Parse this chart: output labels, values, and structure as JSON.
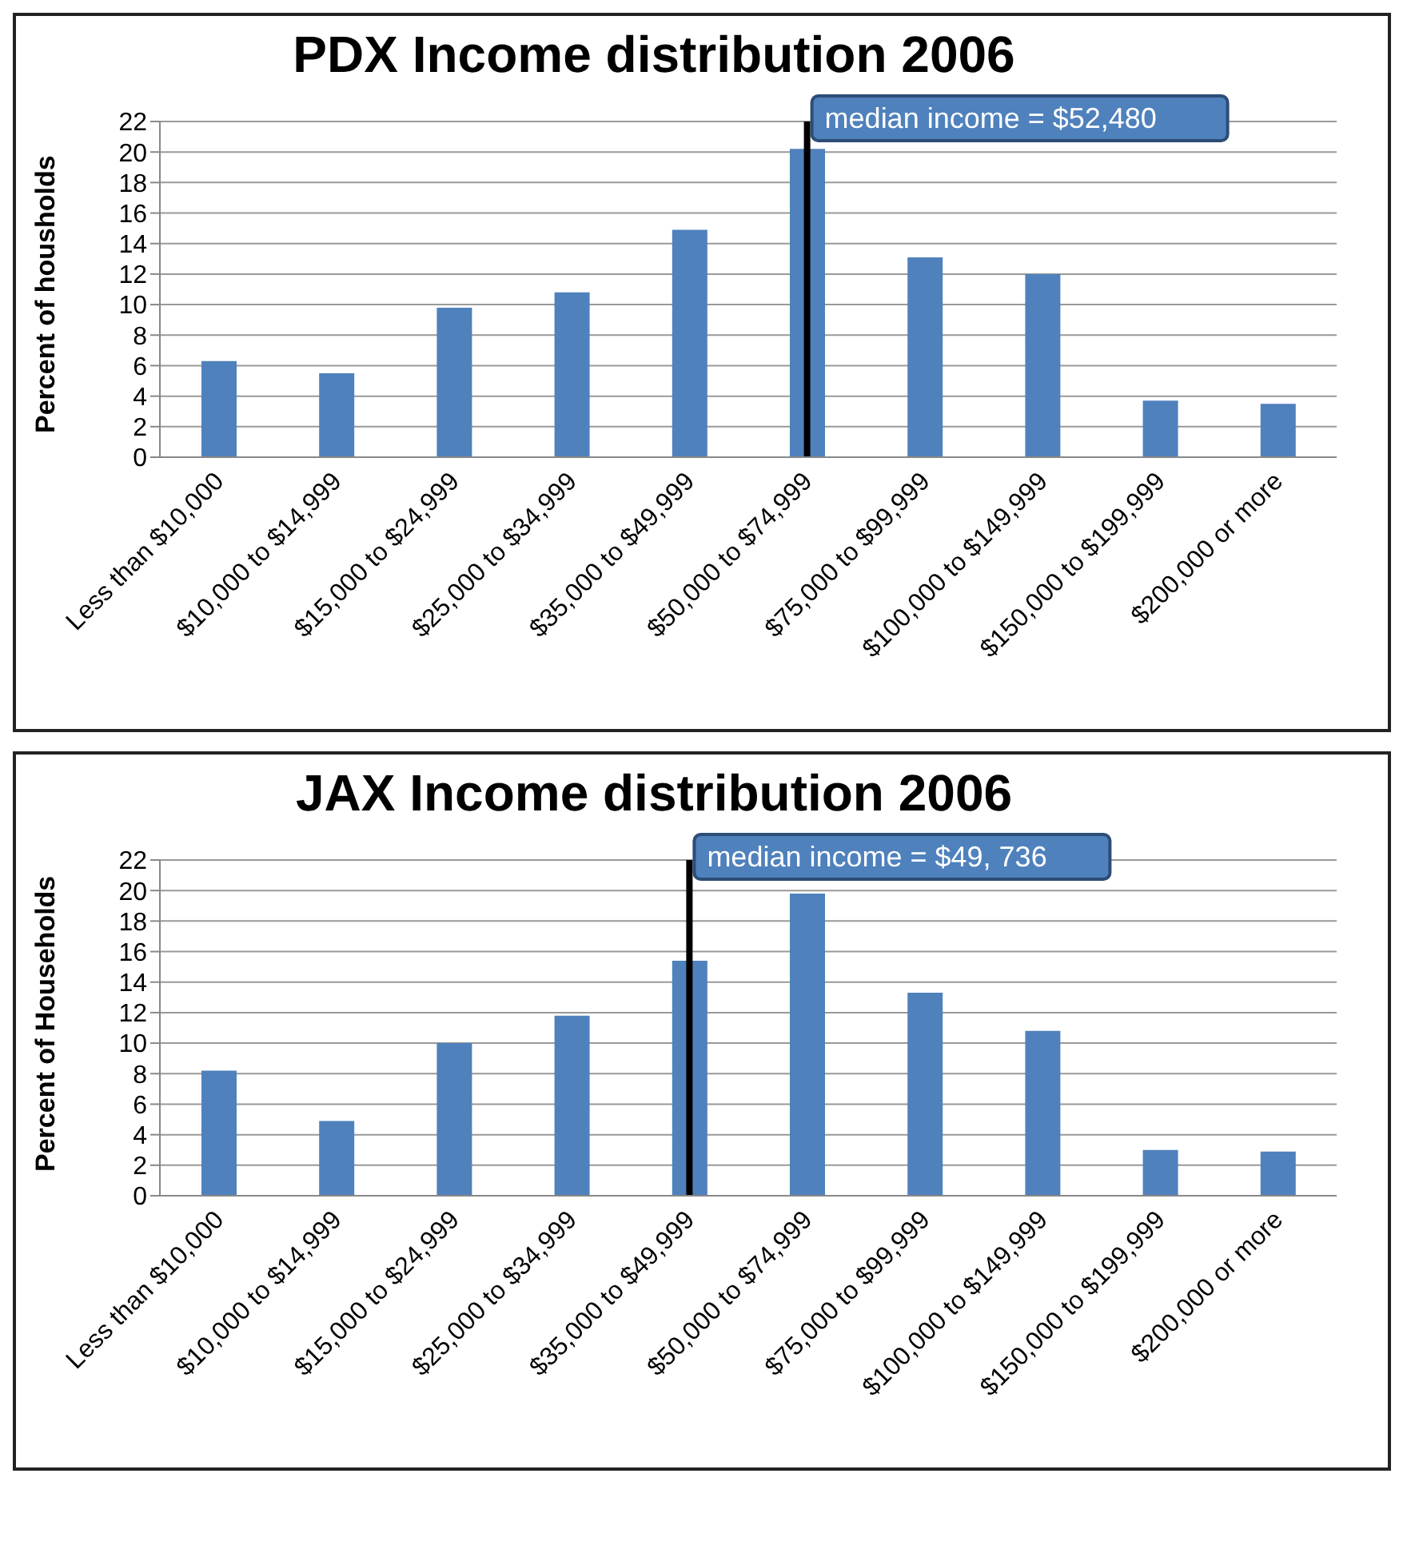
{
  "chart_data": [
    {
      "type": "bar",
      "title": "PDX Income distribution 2006",
      "ylabel": "Percent of housholds",
      "categories": [
        "Less than $10,000",
        "$10,000 to $14,999",
        "$15,000 to $24,999",
        "$25,000 to $34,999",
        "$35,000 to $49,999",
        "$50,000 to $74,999",
        "$75,000 to $99,999",
        "$100,000 to $149,999",
        "$150,000 to $199,999",
        "$200,000 or more"
      ],
      "values": [
        6.3,
        5.5,
        9.8,
        10.8,
        14.9,
        20.2,
        13.1,
        12.0,
        3.7,
        3.5
      ],
      "color": "#4f81bd",
      "ylim": [
        0,
        22
      ],
      "yticks": [
        0,
        2,
        4,
        6,
        8,
        10,
        12,
        14,
        16,
        18,
        20,
        22
      ],
      "grid": "y",
      "legend": false,
      "ref_lines": [
        {
          "axis": "x",
          "value": "$50,000 to $74,999",
          "label": "median income = $52,480",
          "color": "#000000"
        }
      ]
    },
    {
      "type": "bar",
      "title": "JAX Income distribution 2006",
      "ylabel": "Percent of Households",
      "categories": [
        "Less than $10,000",
        "$10,000 to $14,999",
        "$15,000 to $24,999",
        "$25,000 to $34,999",
        "$35,000 to $49,999",
        "$50,000 to $74,999",
        "$75,000 to $99,999",
        "$100,000 to $149,999",
        "$150,000 to $199,999",
        "$200,000 or more"
      ],
      "values": [
        8.2,
        4.9,
        10.0,
        11.8,
        15.4,
        19.8,
        13.3,
        10.8,
        3.0,
        2.9
      ],
      "color": "#4f81bd",
      "ylim": [
        0,
        22
      ],
      "yticks": [
        0,
        2,
        4,
        6,
        8,
        10,
        12,
        14,
        16,
        18,
        20,
        22
      ],
      "grid": "y",
      "legend": false,
      "ref_lines": [
        {
          "axis": "x",
          "value": "$35,000 to $49,999",
          "label": "median income = $49, 736",
          "color": "#000000"
        }
      ]
    }
  ]
}
